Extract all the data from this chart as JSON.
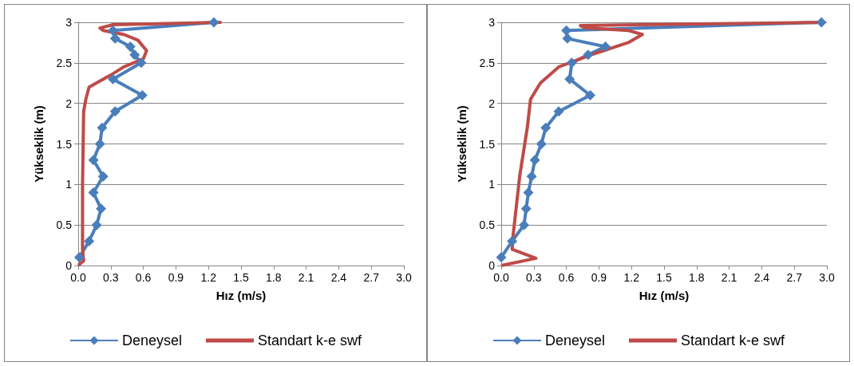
{
  "chart_data": [
    {
      "type": "line",
      "xlabel": "Hız (m/s)",
      "ylabel": "Yükseklik (m)",
      "xlim": [
        0,
        3
      ],
      "ylim": [
        0,
        3
      ],
      "xticks": [
        {
          "value": 0,
          "label": "0.0"
        },
        {
          "value": 0.3,
          "label": "0.3"
        },
        {
          "value": 0.6,
          "label": "0.6"
        },
        {
          "value": 0.9,
          "label": "0.9"
        },
        {
          "value": 1.2,
          "label": "1.2"
        },
        {
          "value": 1.5,
          "label": "1.5"
        },
        {
          "value": 1.8,
          "label": "1.8"
        },
        {
          "value": 2.1,
          "label": "2.1"
        },
        {
          "value": 2.4,
          "label": "2.4"
        },
        {
          "value": 2.7,
          "label": "2.7"
        },
        {
          "value": 3,
          "label": "3.0"
        }
      ],
      "yticks": [
        0,
        0.5,
        1,
        1.5,
        2,
        2.5,
        3
      ],
      "grid": "y",
      "legend": "bottom",
      "series": [
        {
          "name": "Deneysel",
          "color": "#4a7ebb",
          "marker": "diamond",
          "x": [
            0.01,
            0.1,
            0.17,
            0.21,
            0.14,
            0.23,
            0.14,
            0.2,
            0.22,
            0.34,
            0.59,
            0.32,
            0.58,
            0.52,
            0.48,
            0.34,
            0.32,
            1.25
          ],
          "values": [
            0.1,
            0.3,
            0.5,
            0.7,
            0.9,
            1.1,
            1.3,
            1.5,
            1.7,
            1.9,
            2.1,
            2.3,
            2.5,
            2.6,
            2.7,
            2.8,
            2.9,
            3
          ]
        },
        {
          "name": "Standart k-e swf",
          "color": "#be4b48",
          "marker": "none",
          "x": [
            0,
            0.05,
            0.04,
            0.04,
            0.05,
            0.07,
            0.1,
            0.3,
            0.42,
            0.6,
            0.63,
            0.55,
            0.42,
            0.23,
            0.2,
            0.32,
            1.32
          ],
          "values": [
            0,
            0.06,
            0.2,
            1.0,
            1.9,
            2.05,
            2.2,
            2.35,
            2.45,
            2.55,
            2.65,
            2.78,
            2.85,
            2.9,
            2.93,
            2.97,
            3
          ]
        }
      ]
    },
    {
      "type": "line",
      "xlabel": "Hız (m/s)",
      "ylabel": "Yükseklik (m)",
      "xlim": [
        0,
        3
      ],
      "ylim": [
        0,
        3
      ],
      "xticks": [
        {
          "value": 0,
          "label": "0.0"
        },
        {
          "value": 0.3,
          "label": "0.3"
        },
        {
          "value": 0.6,
          "label": "0.6"
        },
        {
          "value": 0.9,
          "label": "0.9"
        },
        {
          "value": 1.2,
          "label": "1.2"
        },
        {
          "value": 1.5,
          "label": "1.5"
        },
        {
          "value": 1.8,
          "label": "1.8"
        },
        {
          "value": 2.1,
          "label": "2.1"
        },
        {
          "value": 2.4,
          "label": "2.4"
        },
        {
          "value": 2.7,
          "label": "2.7"
        },
        {
          "value": 3,
          "label": "3.0"
        }
      ],
      "yticks": [
        0,
        0.5,
        1,
        1.5,
        2,
        2.5,
        3
      ],
      "grid": "y",
      "legend": "bottom",
      "series": [
        {
          "name": "Deneysel",
          "color": "#4a7ebb",
          "marker": "diamond",
          "x": [
            0.0,
            0.1,
            0.21,
            0.23,
            0.25,
            0.28,
            0.31,
            0.37,
            0.41,
            0.53,
            0.82,
            0.63,
            0.65,
            0.8,
            0.96,
            0.61,
            0.6,
            2.95
          ],
          "values": [
            0.1,
            0.3,
            0.5,
            0.7,
            0.9,
            1.1,
            1.3,
            1.5,
            1.7,
            1.9,
            2.1,
            2.3,
            2.5,
            2.6,
            2.7,
            2.8,
            2.9,
            3
          ]
        },
        {
          "name": "Standart k-e swf",
          "color": "#be4b48",
          "marker": "none",
          "x": [
            0,
            0.32,
            0.1,
            0.11,
            0.17,
            0.24,
            0.27,
            0.36,
            0.53,
            0.83,
            1.17,
            1.3,
            1.17,
            0.78,
            0.73,
            2.95
          ],
          "values": [
            0,
            0.09,
            0.2,
            0.38,
            1.1,
            1.7,
            2.05,
            2.25,
            2.45,
            2.6,
            2.75,
            2.85,
            2.9,
            2.93,
            2.96,
            3
          ]
        }
      ]
    }
  ]
}
